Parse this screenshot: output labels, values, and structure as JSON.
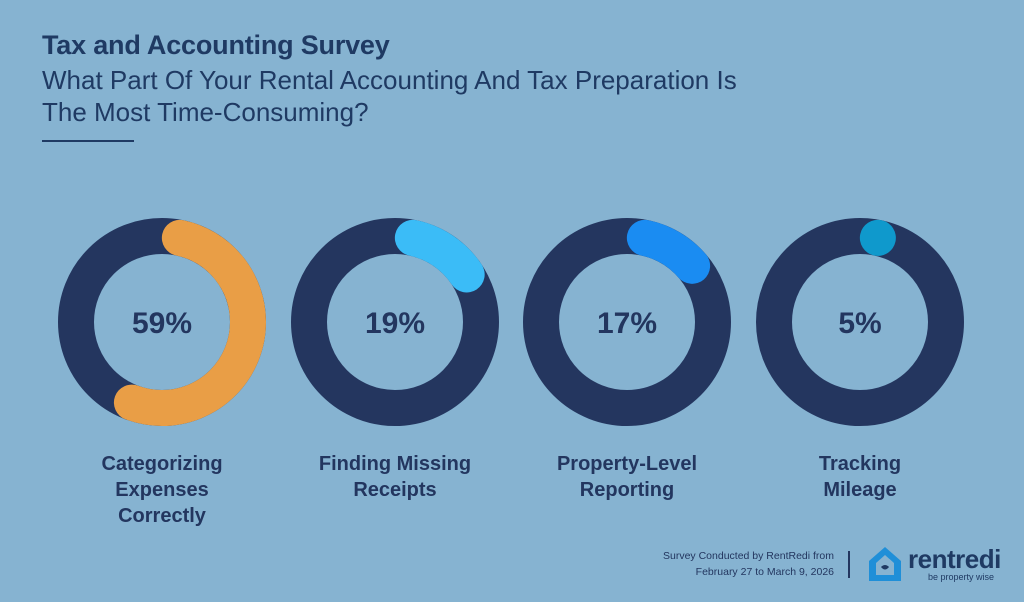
{
  "header": {
    "title": "Tax and Accounting Survey",
    "subtitle": "What Part Of Your Rental Accounting And Tax Preparation Is The Most Time-Consuming?"
  },
  "chart_data": {
    "type": "donut",
    "title": "What Part Of Your Rental Accounting And Tax Preparation Is The Most Time-Consuming?",
    "unit": "%",
    "items": [
      {
        "label_lines": [
          "Categorizing",
          "Expenses",
          "Correctly"
        ],
        "value": 59,
        "value_label": "59%",
        "color": "#e99e46"
      },
      {
        "label_lines": [
          "Finding Missing",
          "Receipts"
        ],
        "value": 19,
        "value_label": "19%",
        "color": "#3bbcf7"
      },
      {
        "label_lines": [
          "Property-Level",
          "Reporting"
        ],
        "value": 17,
        "value_label": "17%",
        "color": "#1a8cf2"
      },
      {
        "label_lines": [
          "Tracking",
          "Mileage"
        ],
        "value": 5,
        "value_label": "5%",
        "color": "#0f99cc"
      }
    ],
    "track_color": "#24365f"
  },
  "footer": {
    "note_line1": "Survey Conducted by RentRedi from",
    "note_line2": "February 27 to March 9, 2026"
  },
  "logo": {
    "wordmark": "rentredi",
    "tagline": "be property wise"
  }
}
